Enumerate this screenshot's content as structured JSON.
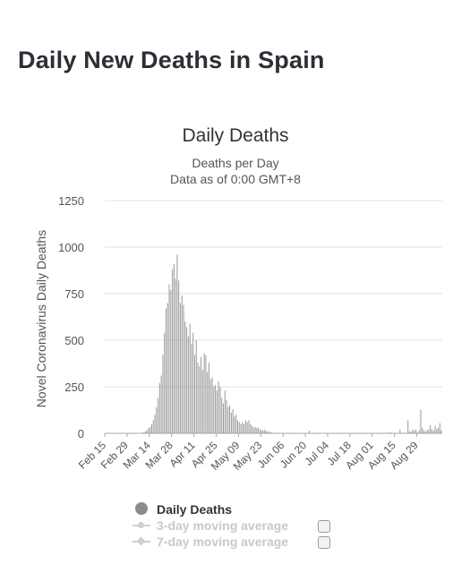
{
  "page": {
    "title": "Daily New Deaths in Spain"
  },
  "chart_data": {
    "type": "bar",
    "title": "Daily Deaths",
    "subtitle_lines": [
      "Deaths per Day",
      "Data as of 0:00 GMT+8"
    ],
    "ylabel": "Novel Coronavirus Daily Deaths",
    "xlabel": "",
    "ylim": [
      0,
      1250
    ],
    "yticks": [
      0,
      250,
      500,
      750,
      1000,
      1250
    ],
    "grid": true,
    "bar_color": "#999999",
    "x_start": "Feb 15",
    "x_tick_labels": [
      "Feb 15",
      "Feb 29",
      "Mar 14",
      "Mar 28",
      "Apr 11",
      "Apr 25",
      "May 09",
      "May 23",
      "Jun 06",
      "Jun 20",
      "Jul 04",
      "Jul 18",
      "Aug 01",
      "Aug 15",
      "Aug 29"
    ],
    "series": [
      {
        "name": "Daily Deaths",
        "values": [
          0,
          0,
          0,
          0,
          0,
          0,
          0,
          0,
          0,
          0,
          0,
          0,
          0,
          0,
          0,
          0,
          0,
          0,
          0,
          0,
          0,
          0,
          2,
          3,
          5,
          10,
          17,
          28,
          35,
          50,
          70,
          100,
          140,
          190,
          270,
          310,
          420,
          540,
          670,
          700,
          800,
          770,
          880,
          910,
          830,
          960,
          820,
          700,
          740,
          690,
          600,
          570,
          520,
          590,
          480,
          540,
          420,
          500,
          380,
          360,
          410,
          340,
          430,
          420,
          330,
          380,
          290,
          300,
          250,
          260,
          230,
          280,
          250,
          190,
          160,
          230,
          180,
          140,
          150,
          110,
          130,
          90,
          100,
          70,
          60,
          50,
          60,
          50,
          70,
          60,
          70,
          50,
          40,
          30,
          35,
          28,
          30,
          20,
          18,
          15,
          20,
          12,
          10,
          8,
          5,
          3,
          2,
          1,
          0,
          2,
          0,
          1,
          0,
          0,
          0,
          0,
          0,
          0,
          1,
          0,
          0,
          0,
          0,
          0,
          0,
          0,
          0,
          2,
          15,
          0,
          0,
          1,
          0,
          0,
          0,
          0,
          0,
          0,
          0,
          0,
          0,
          0,
          0,
          0,
          0,
          1,
          0,
          0,
          0,
          0,
          0,
          2,
          0,
          1,
          0,
          0,
          0,
          0,
          1,
          0,
          3,
          0,
          0,
          0,
          0,
          0,
          0,
          0,
          0,
          1,
          0,
          3,
          0,
          2,
          0,
          0,
          0,
          4,
          0,
          5,
          0,
          2,
          0,
          0,
          3,
          20,
          0,
          0,
          4,
          0,
          70,
          10,
          8,
          22,
          15,
          20,
          5,
          16,
          128,
          30,
          15,
          10,
          18,
          20,
          45,
          22,
          15,
          40,
          25,
          30,
          55,
          18
        ]
      }
    ]
  },
  "legend": {
    "items": [
      {
        "label": "Daily Deaths",
        "enabled": true
      },
      {
        "label": "3-day moving average",
        "enabled": false
      },
      {
        "label": "7-day moving average",
        "enabled": false
      }
    ]
  }
}
